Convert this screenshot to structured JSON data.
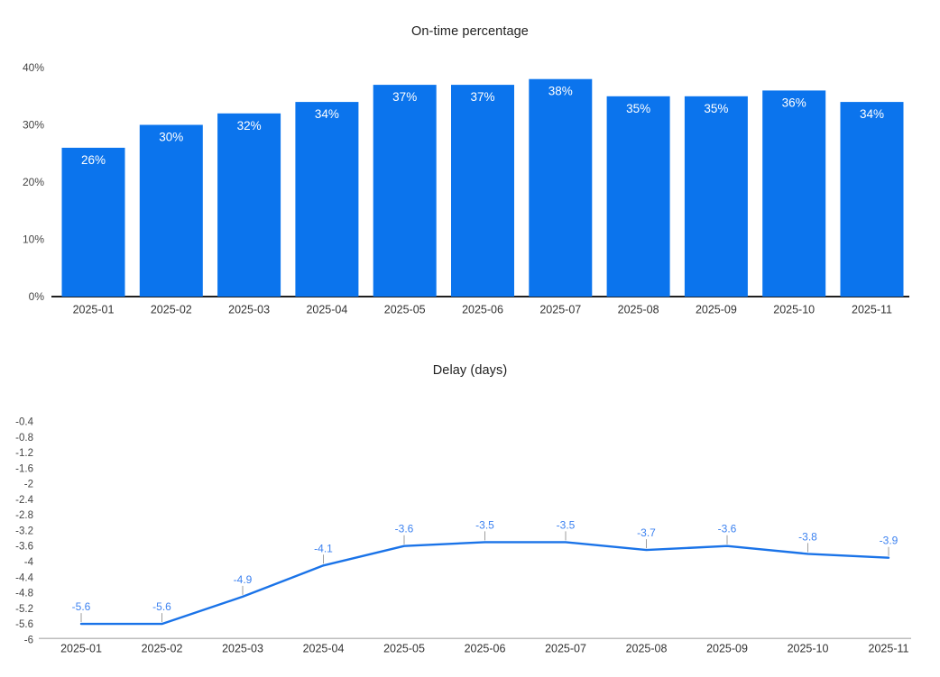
{
  "page": {
    "background": "#ffffff"
  },
  "chart_data": [
    {
      "type": "bar",
      "title": "On-time percentage",
      "categories": [
        "2025-01",
        "2025-02",
        "2025-03",
        "2025-04",
        "2025-05",
        "2025-06",
        "2025-07",
        "2025-08",
        "2025-09",
        "2025-10",
        "2025-11"
      ],
      "values": [
        26,
        30,
        32,
        34,
        37,
        37,
        38,
        35,
        35,
        36,
        34
      ],
      "bar_labels": [
        "26%",
        "30%",
        "32%",
        "34%",
        "37%",
        "37%",
        "38%",
        "35%",
        "35%",
        "36%",
        "34%"
      ],
      "y_ticks": [
        "0%",
        "10%",
        "20%",
        "30%",
        "40%"
      ],
      "ylim": [
        0,
        40
      ],
      "xlabel": "",
      "ylabel": "",
      "grid": false,
      "legend": "none",
      "colors": {
        "bar": "#0b74ed",
        "bar_label": "#ffffff",
        "axis_line": "#1f1f1f",
        "tick_text": "#444444",
        "category_text": "#333333",
        "title_text": "#212121"
      }
    },
    {
      "type": "line",
      "title": "Delay (days)",
      "categories": [
        "2025-01",
        "2025-02",
        "2025-03",
        "2025-04",
        "2025-05",
        "2025-06",
        "2025-07",
        "2025-08",
        "2025-09",
        "2025-10",
        "2025-11"
      ],
      "values": [
        -5.6,
        -5.6,
        -4.9,
        -4.1,
        -3.6,
        -3.5,
        -3.5,
        -3.7,
        -3.6,
        -3.8,
        -3.9
      ],
      "point_labels": [
        "-5.6",
        "-5.6",
        "-4.9",
        "-4.1",
        "-3.6",
        "-3.5",
        "-3.5",
        "-3.7",
        "-3.6",
        "-3.8",
        "-3.9"
      ],
      "y_ticks": [
        "-0.4",
        "-0.8",
        "-1.2",
        "-1.6",
        "-2",
        "-2.4",
        "-2.8",
        "-3.2",
        "-3.6",
        "-4",
        "-4.4",
        "-4.8",
        "-5.2",
        "-5.6",
        "-6"
      ],
      "ylim": [
        -6,
        -0.4
      ],
      "xlabel": "",
      "ylabel": "",
      "grid": false,
      "legend": "none",
      "colors": {
        "line": "#1a73e8",
        "point_label": "#3d82f0",
        "stem": "#9e9e9e",
        "axis_line": "#bdbdbd",
        "tick_text": "#444444",
        "category_text": "#333333",
        "title_text": "#212121"
      }
    }
  ]
}
